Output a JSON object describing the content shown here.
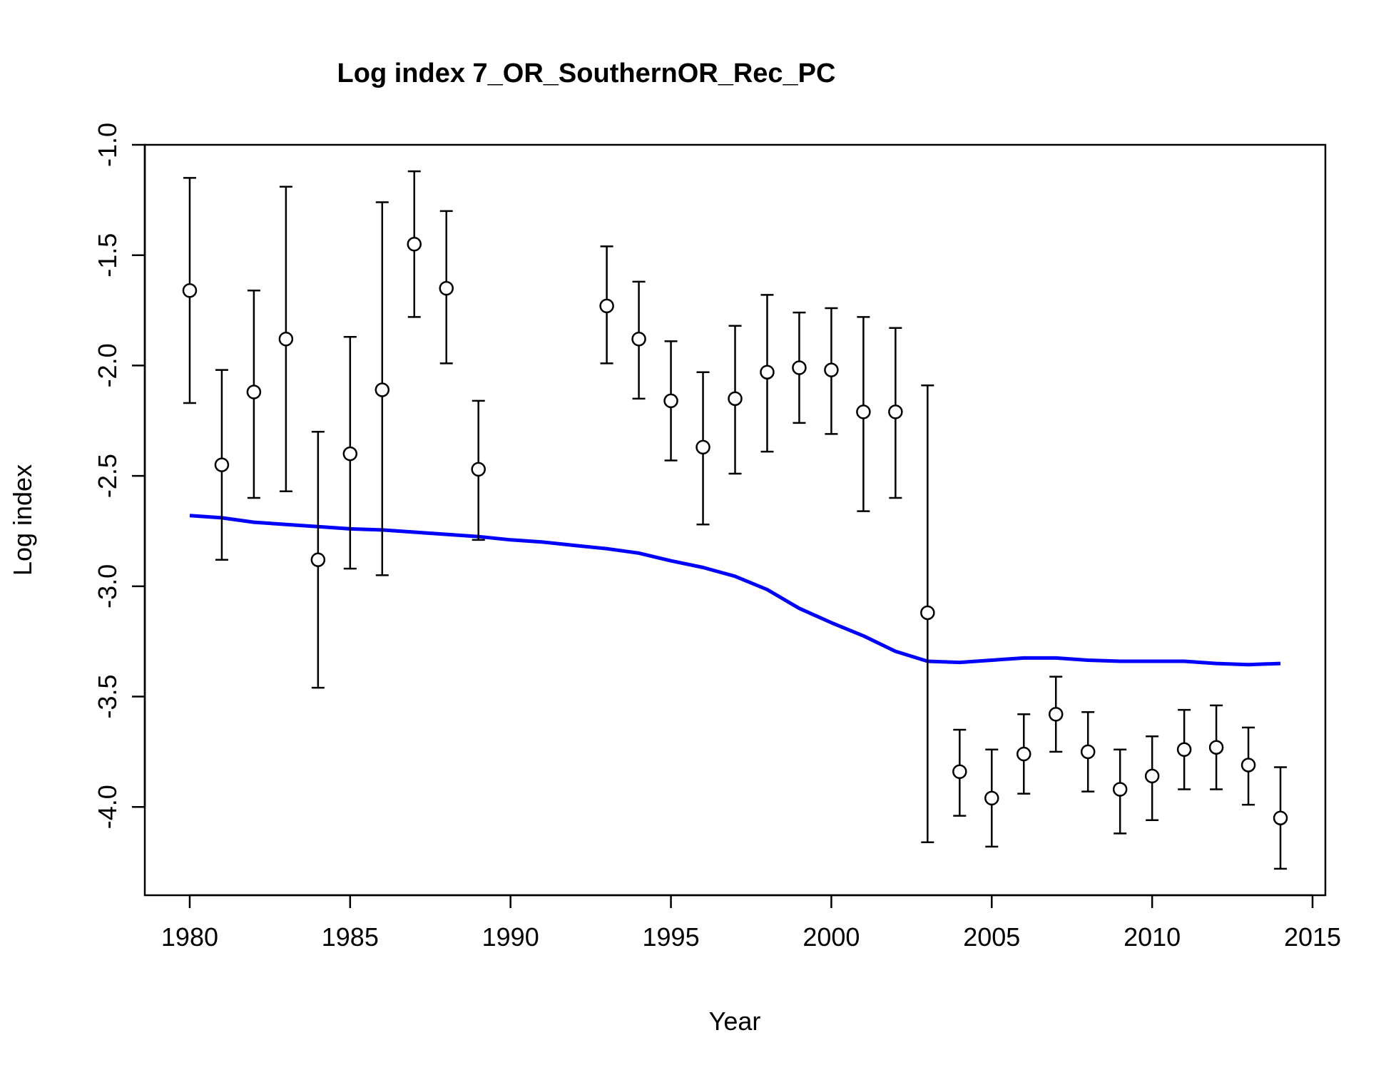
{
  "chart_data": {
    "type": "scatter",
    "title": "Log index 7_OR_SouthernOR_Rec_PC",
    "xlabel": "Year",
    "ylabel": "Log index",
    "xlim": [
      1978.6,
      2015.4
    ],
    "ylim": [
      -4.4,
      -1.0
    ],
    "x_ticks": [
      1980,
      1985,
      1990,
      1995,
      2000,
      2005,
      2010,
      2015
    ],
    "y_ticks": [
      -4.0,
      -3.5,
      -3.0,
      -2.5,
      -2.0,
      -1.5,
      -1.0
    ],
    "grid": false,
    "legend": "none",
    "observed": {
      "x": [
        1980,
        1981,
        1982,
        1983,
        1984,
        1985,
        1986,
        1987,
        1988,
        1989,
        1993,
        1994,
        1995,
        1996,
        1997,
        1998,
        1999,
        2000,
        2001,
        2002,
        2003,
        2004,
        2005,
        2006,
        2007,
        2008,
        2009,
        2010,
        2011,
        2012,
        2013,
        2014
      ],
      "y": [
        -1.66,
        -2.45,
        -2.12,
        -1.88,
        -2.88,
        -2.4,
        -2.11,
        -1.45,
        -1.65,
        -2.47,
        -1.73,
        -1.88,
        -2.16,
        -2.37,
        -2.15,
        -2.03,
        -2.01,
        -2.02,
        -2.21,
        -2.21,
        -3.12,
        -3.84,
        -3.96,
        -3.76,
        -3.58,
        -3.75,
        -3.92,
        -3.86,
        -3.74,
        -3.73,
        -3.81,
        -4.05
      ],
      "lower": [
        -2.17,
        -2.88,
        -2.6,
        -2.57,
        -3.46,
        -2.92,
        -2.95,
        -1.78,
        -1.99,
        -2.79,
        -1.99,
        -2.15,
        -2.43,
        -2.72,
        -2.49,
        -2.39,
        -2.26,
        -2.31,
        -2.66,
        -2.6,
        -4.16,
        -4.04,
        -4.18,
        -3.94,
        -3.75,
        -3.93,
        -4.12,
        -4.06,
        -3.92,
        -3.92,
        -3.99,
        -4.28
      ],
      "upper": [
        -1.15,
        -2.02,
        -1.66,
        -1.19,
        -2.3,
        -1.87,
        -1.26,
        -1.12,
        -1.3,
        -2.16,
        -1.46,
        -1.62,
        -1.89,
        -2.03,
        -1.82,
        -1.68,
        -1.76,
        -1.74,
        -1.78,
        -1.83,
        -2.09,
        -3.65,
        -3.74,
        -3.58,
        -3.41,
        -3.57,
        -3.74,
        -3.68,
        -3.56,
        -3.54,
        -3.64,
        -3.82
      ]
    },
    "expected": {
      "color": "#0000ff",
      "x": [
        1980,
        1981,
        1982,
        1983,
        1984,
        1985,
        1986,
        1987,
        1988,
        1989,
        1990,
        1991,
        1992,
        1993,
        1994,
        1995,
        1996,
        1997,
        1998,
        1999,
        2000,
        2001,
        2002,
        2003,
        2004,
        2005,
        2006,
        2007,
        2008,
        2009,
        2010,
        2011,
        2012,
        2013,
        2014
      ],
      "y": [
        -2.68,
        -2.69,
        -2.71,
        -2.72,
        -2.73,
        -2.74,
        -2.745,
        -2.755,
        -2.765,
        -2.775,
        -2.79,
        -2.8,
        -2.815,
        -2.83,
        -2.85,
        -2.885,
        -2.915,
        -2.955,
        -3.015,
        -3.1,
        -3.165,
        -3.225,
        -3.295,
        -3.34,
        -3.345,
        -3.335,
        -3.325,
        -3.325,
        -3.335,
        -3.34,
        -3.34,
        -3.34,
        -3.35,
        -3.355,
        -3.35
      ]
    }
  }
}
